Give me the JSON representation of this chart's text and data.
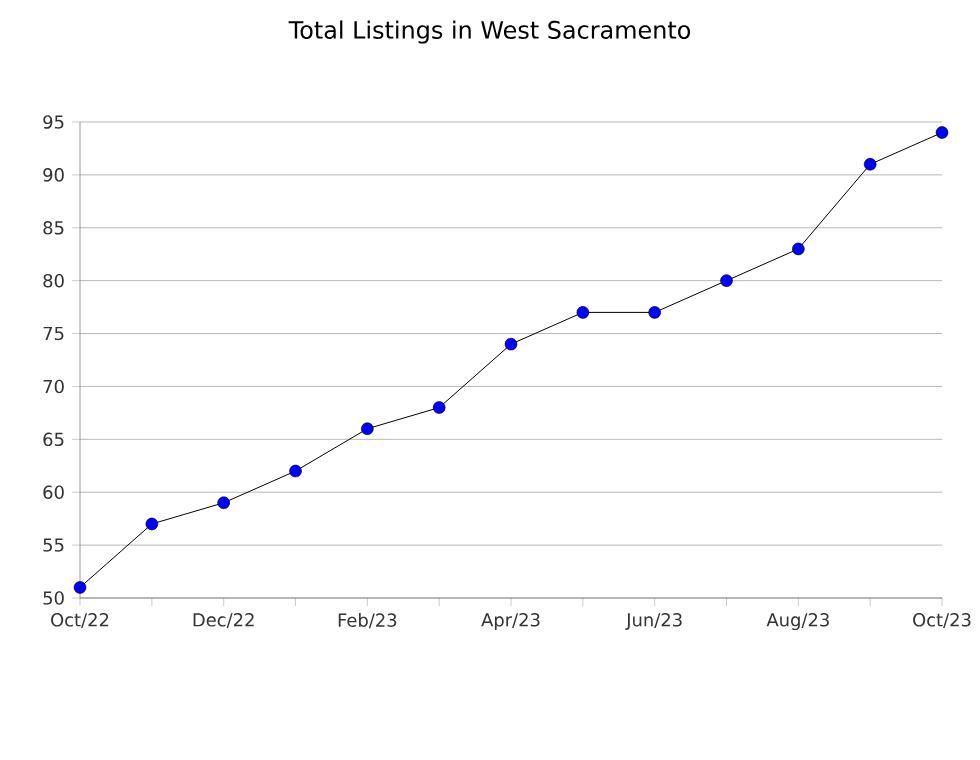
{
  "chart_data": {
    "type": "line",
    "title": "Total Listings in West Sacramento",
    "categories": [
      "Oct/22",
      null,
      "Dec/22",
      null,
      "Feb/23",
      null,
      "Apr/23",
      null,
      "Jun/23",
      null,
      "Aug/23",
      null,
      "Oct/23"
    ],
    "values": [
      51,
      57,
      59,
      62,
      66,
      68,
      74,
      77,
      77,
      80,
      83,
      91,
      94
    ],
    "color": "#0000ff",
    "marker": "circle",
    "grid": "y",
    "ylim": [
      50,
      95
    ],
    "yticks": [
      50,
      55,
      60,
      65,
      70,
      75,
      80,
      85,
      90,
      95
    ]
  }
}
